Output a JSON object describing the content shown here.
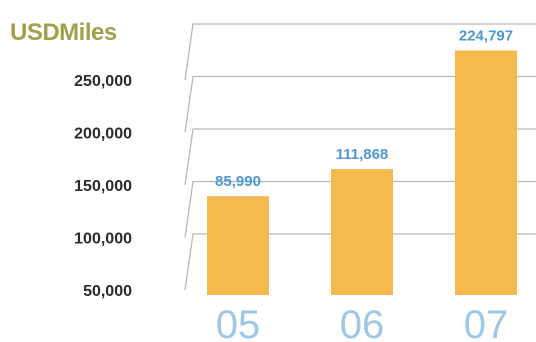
{
  "chart_data": {
    "type": "bar",
    "title": "USDMiles",
    "categories": [
      "05",
      "06",
      "07"
    ],
    "values": [
      85990,
      111868,
      224797
    ],
    "data_labels": [
      "85,990",
      "111,868",
      "224,797"
    ],
    "y_ticks": [
      50000,
      100000,
      150000,
      200000,
      250000
    ],
    "y_tick_labels": [
      "50,000",
      "100,000",
      "150,000",
      "200,000",
      "250,000"
    ],
    "ylim": [
      30000,
      270000
    ],
    "grid": true,
    "legend": "none"
  },
  "colors": {
    "title": "#9fa24a",
    "bar": "#f5b94e",
    "data_label": "#4f97d4",
    "x_label": "#9ec8ea",
    "grid": "#b9b9b9"
  }
}
